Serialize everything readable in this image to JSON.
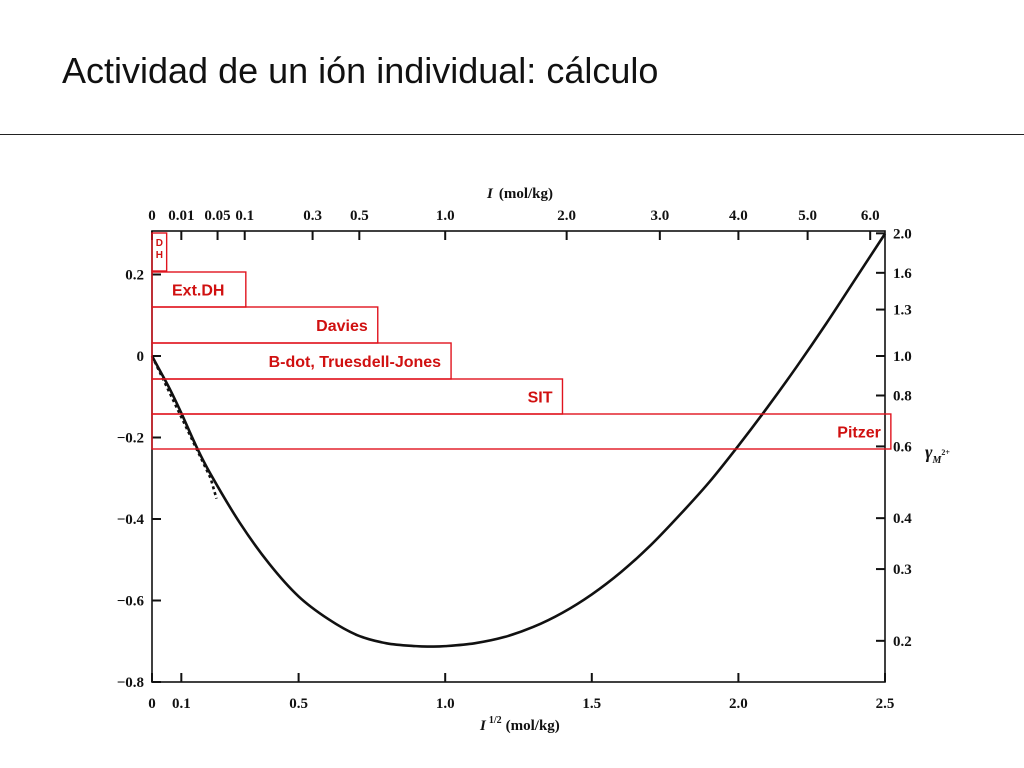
{
  "slide": {
    "title": "Actividad de un ión individual: cálculo"
  },
  "chart_data": {
    "type": "line",
    "title": "",
    "xlabel_bottom": "I",
    "xlabel_bottom_sup": "1/2",
    "xlabel_bottom_unit": "(mol/kg)",
    "xlabel_top": "I",
    "xlabel_top_unit": "(mol/kg)",
    "ylabel_right": "γ",
    "ylabel_right_sub": "M",
    "ylabel_right_sup": "2+",
    "xlim": [
      0,
      2.5
    ],
    "ylim": [
      -0.8,
      0.3
    ],
    "bottom_ticks": [
      {
        "v": 0,
        "label": "0"
      },
      {
        "v": 0.1,
        "label": "0.1"
      },
      {
        "v": 0.5,
        "label": "0.5"
      },
      {
        "v": 1.0,
        "label": "1.0"
      },
      {
        "v": 1.5,
        "label": "1.5"
      },
      {
        "v": 2.0,
        "label": "2.0"
      },
      {
        "v": 2.5,
        "label": "2.5"
      }
    ],
    "top_ticks": [
      {
        "v": 0,
        "label": "0"
      },
      {
        "v": 0.01,
        "label": "0.01"
      },
      {
        "v": 0.05,
        "label": "0.05"
      },
      {
        "v": 0.1,
        "label": "0.1"
      },
      {
        "v": 0.3,
        "label": "0.3"
      },
      {
        "v": 0.5,
        "label": "0.5"
      },
      {
        "v": 1.0,
        "label": "1.0"
      },
      {
        "v": 2.0,
        "label": "2.0"
      },
      {
        "v": 3.0,
        "label": "3.0"
      },
      {
        "v": 4.0,
        "label": "4.0"
      },
      {
        "v": 5.0,
        "label": "5.0"
      },
      {
        "v": 6.0,
        "label": "6.0"
      }
    ],
    "left_ticks": [
      {
        "v": 0.2,
        "label": "0.2"
      },
      {
        "v": 0,
        "label": "0"
      },
      {
        "v": -0.2,
        "label": "−0.2"
      },
      {
        "v": -0.4,
        "label": "−0.4"
      },
      {
        "v": -0.6,
        "label": "−0.6"
      },
      {
        "v": -0.8,
        "label": "−0.8"
      }
    ],
    "right_ticks": [
      {
        "v": 2.0,
        "label": "2.0"
      },
      {
        "v": 1.6,
        "label": "1.6"
      },
      {
        "v": 1.3,
        "label": "1.3"
      },
      {
        "v": 1.0,
        "label": "1.0"
      },
      {
        "v": 0.8,
        "label": "0.8"
      },
      {
        "v": 0.6,
        "label": "0.6"
      },
      {
        "v": 0.4,
        "label": "0.4"
      },
      {
        "v": 0.3,
        "label": "0.3"
      },
      {
        "v": 0.2,
        "label": "0.2"
      }
    ],
    "series": [
      {
        "style": "solid",
        "x": [
          0,
          0.03,
          0.06,
          0.1,
          0.15,
          0.2,
          0.3,
          0.4,
          0.5,
          0.6,
          0.7,
          0.8,
          0.9,
          0.95,
          1.0,
          1.1,
          1.2,
          1.3,
          1.4,
          1.5,
          1.6,
          1.7,
          1.8,
          1.9,
          2.0,
          2.1,
          2.2,
          2.3,
          2.4,
          2.5
        ],
        "y": [
          0,
          -0.04,
          -0.08,
          -0.14,
          -0.22,
          -0.29,
          -0.41,
          -0.51,
          -0.59,
          -0.645,
          -0.685,
          -0.705,
          -0.712,
          -0.713,
          -0.712,
          -0.705,
          -0.69,
          -0.665,
          -0.63,
          -0.585,
          -0.53,
          -0.465,
          -0.39,
          -0.31,
          -0.22,
          -0.125,
          -0.025,
          0.08,
          0.19,
          0.3
        ]
      },
      {
        "style": "dotted",
        "x": [
          0,
          0.04,
          0.08,
          0.12,
          0.16,
          0.2,
          0.22
        ],
        "y": [
          0,
          -0.06,
          -0.12,
          -0.18,
          -0.24,
          -0.3,
          -0.35
        ]
      }
    ],
    "ranges": [
      {
        "label": "D\nH",
        "x_end": 0.05
      },
      {
        "label": "Ext.DH",
        "x_end": 0.32
      },
      {
        "label": "Davies",
        "x_end": 0.77
      },
      {
        "label": "B-dot, Truesdell-Jones",
        "x_end": 1.02
      },
      {
        "label": "SIT",
        "x_end": 1.4
      },
      {
        "label": "Pitzer",
        "x_end": 2.52
      }
    ],
    "colors": {
      "axis": "#111111",
      "curve": "#111111",
      "range": "#e0141e",
      "range_text": "#d01010"
    }
  }
}
